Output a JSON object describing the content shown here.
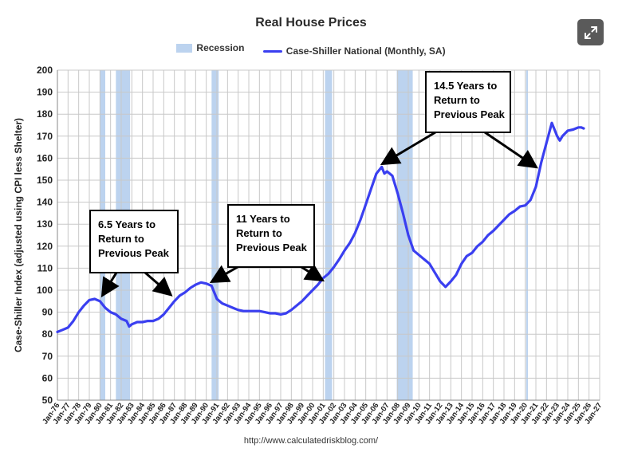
{
  "chart_data": {
    "type": "line",
    "title": "Real House Prices",
    "xlabel": "",
    "ylabel": "Case-Shiller Index (adjusted using CPI less Shelter)",
    "ylim": [
      50,
      200
    ],
    "xlim": [
      1976,
      2027
    ],
    "grid": true,
    "legend_position": "top",
    "legend": [
      "Recession",
      "Case-Shiller National (Monthly, SA)"
    ],
    "y_ticks": [
      50,
      60,
      70,
      80,
      90,
      100,
      110,
      120,
      130,
      140,
      150,
      160,
      170,
      180,
      190,
      200
    ],
    "x_ticks": [
      "Jan-76",
      "Jan-77",
      "Jan-78",
      "Jan-79",
      "Jan-80",
      "Jan-81",
      "Jan-82",
      "Jan-83",
      "Jan-84",
      "Jan-85",
      "Jan-86",
      "Jan-87",
      "Jan-88",
      "Jan-89",
      "Jan-90",
      "Jan-91",
      "Jan-92",
      "Jan-93",
      "Jan-94",
      "Jan-95",
      "Jan-96",
      "Jan-97",
      "Jan-98",
      "Jan-99",
      "Jan-00",
      "Jan-01",
      "Jan-02",
      "Jan-03",
      "Jan-04",
      "Jan-05",
      "Jan-06",
      "Jan-07",
      "Jan-08",
      "Jan-09",
      "Jan-10",
      "Jan-11",
      "Jan-12",
      "Jan-13",
      "Jan-14",
      "Jan-15",
      "Jan-16",
      "Jan-17",
      "Jan-18",
      "Jan-19",
      "Jan-20",
      "Jan-21",
      "Jan-22",
      "Jan-23",
      "Jan-24",
      "Jan-25",
      "Jan-26",
      "Jan-27"
    ],
    "recessions": [
      {
        "start": "Jan-80",
        "end": "Jul-80"
      },
      {
        "start": "Jul-81",
        "end": "Nov-82"
      },
      {
        "start": "Jul-90",
        "end": "Mar-91"
      },
      {
        "start": "Mar-01",
        "end": "Nov-01"
      },
      {
        "start": "Dec-07",
        "end": "Jun-09"
      },
      {
        "start": "Feb-20",
        "end": "Apr-20"
      }
    ],
    "series": [
      {
        "name": "Case-Shiller National (Monthly, SA)",
        "color": "#3a3ff0",
        "points": [
          [
            "Jan-76",
            81
          ],
          [
            "Jul-76",
            82
          ],
          [
            "Jan-77",
            83
          ],
          [
            "Jul-77",
            86
          ],
          [
            "Jan-78",
            90
          ],
          [
            "Jul-78",
            93
          ],
          [
            "Jan-79",
            95.5
          ],
          [
            "Jul-79",
            96
          ],
          [
            "Jan-80",
            95
          ],
          [
            "Jul-80",
            92
          ],
          [
            "Jan-81",
            90
          ],
          [
            "Jul-81",
            89
          ],
          [
            "Jan-82",
            87
          ],
          [
            "Jul-82",
            86
          ],
          [
            "Oct-82",
            83.5
          ],
          [
            "Jan-83",
            84.5
          ],
          [
            "Jul-83",
            85.5
          ],
          [
            "Jan-84",
            85.5
          ],
          [
            "Jul-84",
            86
          ],
          [
            "Jan-85",
            86
          ],
          [
            "Jul-85",
            87
          ],
          [
            "Jan-86",
            89
          ],
          [
            "Jul-86",
            92
          ],
          [
            "Jan-87",
            95
          ],
          [
            "Jul-87",
            97.5
          ],
          [
            "Jan-88",
            99
          ],
          [
            "Jul-88",
            101
          ],
          [
            "Jan-89",
            102.5
          ],
          [
            "Jul-89",
            103.5
          ],
          [
            "Jan-90",
            103
          ],
          [
            "Jul-90",
            102
          ],
          [
            "Jan-91",
            96
          ],
          [
            "Jul-91",
            94
          ],
          [
            "Jan-92",
            93
          ],
          [
            "Jul-92",
            92
          ],
          [
            "Jan-93",
            91
          ],
          [
            "Jul-93",
            90.5
          ],
          [
            "Jan-94",
            90.5
          ],
          [
            "Jul-94",
            90.5
          ],
          [
            "Jan-95",
            90.5
          ],
          [
            "Jul-95",
            90
          ],
          [
            "Jan-96",
            89.5
          ],
          [
            "Jul-96",
            89.5
          ],
          [
            "Jan-97",
            89
          ],
          [
            "Jul-97",
            89.5
          ],
          [
            "Jan-98",
            91
          ],
          [
            "Jul-98",
            93
          ],
          [
            "Jan-99",
            95
          ],
          [
            "Jul-99",
            97.5
          ],
          [
            "Jan-00",
            100
          ],
          [
            "Jul-00",
            102.5
          ],
          [
            "Jan-01",
            105.5
          ],
          [
            "Jul-01",
            107.5
          ],
          [
            "Jan-02",
            110.5
          ],
          [
            "Jul-02",
            114
          ],
          [
            "Jan-03",
            118
          ],
          [
            "Jul-03",
            121.5
          ],
          [
            "Jan-04",
            126
          ],
          [
            "Jul-04",
            132
          ],
          [
            "Jan-05",
            139
          ],
          [
            "Jul-05",
            146
          ],
          [
            "Jan-06",
            153
          ],
          [
            "Jul-06",
            156
          ],
          [
            "Oct-06",
            153
          ],
          [
            "Jan-07",
            154
          ],
          [
            "Jul-07",
            152
          ],
          [
            "Jan-08",
            144
          ],
          [
            "Jul-08",
            135
          ],
          [
            "Jan-09",
            125
          ],
          [
            "Jul-09",
            118
          ],
          [
            "Jan-10",
            116
          ],
          [
            "Jul-10",
            114
          ],
          [
            "Jan-11",
            112
          ],
          [
            "Jul-11",
            108
          ],
          [
            "Jan-12",
            104
          ],
          [
            "Jul-12",
            101.5
          ],
          [
            "Jan-13",
            104
          ],
          [
            "Jul-13",
            107
          ],
          [
            "Jan-14",
            112
          ],
          [
            "Jul-14",
            115.5
          ],
          [
            "Jan-15",
            117
          ],
          [
            "Jul-15",
            120
          ],
          [
            "Jan-16",
            122
          ],
          [
            "Jul-16",
            125
          ],
          [
            "Jan-17",
            127
          ],
          [
            "Jul-17",
            129.5
          ],
          [
            "Jan-18",
            132
          ],
          [
            "Jul-18",
            134.5
          ],
          [
            "Jan-19",
            136
          ],
          [
            "Jul-19",
            138
          ],
          [
            "Jan-20",
            138.5
          ],
          [
            "Jul-20",
            141
          ],
          [
            "Jan-21",
            147
          ],
          [
            "Jul-21",
            158
          ],
          [
            "Jan-22",
            167
          ],
          [
            "Jul-22",
            176
          ],
          [
            "Jan-23",
            170
          ],
          [
            "Apr-23",
            168
          ],
          [
            "Jul-23",
            170
          ],
          [
            "Jan-24",
            172.5
          ],
          [
            "Jul-24",
            173
          ],
          [
            "Jan-25",
            174
          ],
          [
            "Apr-25",
            174
          ],
          [
            "Jul-25",
            173.5
          ]
        ]
      }
    ],
    "annotations": [
      {
        "lines": [
          "6.5 Years to",
          "Return to",
          "Previous Peak"
        ]
      },
      {
        "lines": [
          "11 Years to",
          "Return to",
          "Previous Peak"
        ]
      },
      {
        "lines": [
          "14.5 Years to",
          "Return to",
          "Previous Peak"
        ]
      }
    ],
    "source": "http://www.calculatedriskblog.com/"
  },
  "ui": {
    "expand_icon": "expand-arrows-icon"
  }
}
